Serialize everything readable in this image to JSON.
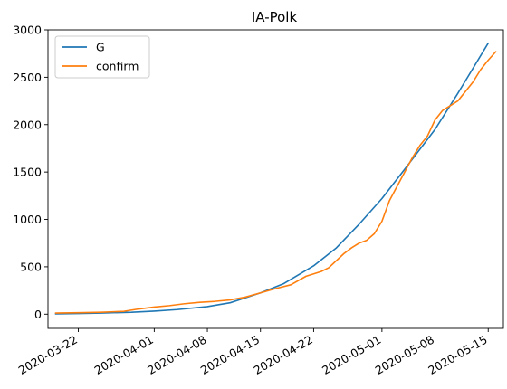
{
  "chart_data": {
    "type": "line",
    "title": "IA-Polk",
    "xlabel": "",
    "ylabel": "",
    "x_axis_type": "date",
    "xlim": [
      "2020-03-18",
      "2020-05-17"
    ],
    "ylim": [
      -150,
      3000
    ],
    "y_ticks": [
      0,
      500,
      1000,
      1500,
      2000,
      2500,
      3000
    ],
    "x_ticks": [
      "2020-03-22",
      "2020-04-01",
      "2020-04-08",
      "2020-04-15",
      "2020-04-22",
      "2020-05-01",
      "2020-05-08",
      "2020-05-15"
    ],
    "grid": false,
    "legend_position": "upper-left",
    "series": [
      {
        "name": "G",
        "color": "#1f77b4",
        "points": [
          [
            "2020-03-19",
            3
          ],
          [
            "2020-03-22",
            7
          ],
          [
            "2020-03-25",
            12
          ],
          [
            "2020-03-29",
            20
          ],
          [
            "2020-04-01",
            32
          ],
          [
            "2020-04-04",
            48
          ],
          [
            "2020-04-08",
            80
          ],
          [
            "2020-04-11",
            120
          ],
          [
            "2020-04-15",
            225
          ],
          [
            "2020-04-18",
            320
          ],
          [
            "2020-04-22",
            510
          ],
          [
            "2020-04-25",
            700
          ],
          [
            "2020-04-28",
            950
          ],
          [
            "2020-05-01",
            1220
          ],
          [
            "2020-05-04",
            1530
          ],
          [
            "2020-05-08",
            1950
          ],
          [
            "2020-05-11",
            2330
          ],
          [
            "2020-05-15",
            2860
          ]
        ]
      },
      {
        "name": "confirm",
        "color": "#ff7f0e",
        "points": [
          [
            "2020-03-19",
            12
          ],
          [
            "2020-03-22",
            15
          ],
          [
            "2020-03-25",
            20
          ],
          [
            "2020-03-28",
            30
          ],
          [
            "2020-03-30",
            55
          ],
          [
            "2020-04-01",
            75
          ],
          [
            "2020-04-03",
            90
          ],
          [
            "2020-04-05",
            110
          ],
          [
            "2020-04-07",
            125
          ],
          [
            "2020-04-09",
            135
          ],
          [
            "2020-04-11",
            150
          ],
          [
            "2020-04-13",
            180
          ],
          [
            "2020-04-15",
            225
          ],
          [
            "2020-04-17",
            270
          ],
          [
            "2020-04-19",
            310
          ],
          [
            "2020-04-21",
            400
          ],
          [
            "2020-04-23",
            450
          ],
          [
            "2020-04-24",
            490
          ],
          [
            "2020-04-26",
            640
          ],
          [
            "2020-04-27",
            700
          ],
          [
            "2020-04-28",
            750
          ],
          [
            "2020-04-29",
            780
          ],
          [
            "2020-04-30",
            850
          ],
          [
            "2020-05-01",
            980
          ],
          [
            "2020-05-02",
            1200
          ],
          [
            "2020-05-03",
            1350
          ],
          [
            "2020-05-04",
            1500
          ],
          [
            "2020-05-05",
            1650
          ],
          [
            "2020-05-06",
            1780
          ],
          [
            "2020-05-07",
            1880
          ],
          [
            "2020-05-08",
            2050
          ],
          [
            "2020-05-09",
            2150
          ],
          [
            "2020-05-10",
            2200
          ],
          [
            "2020-05-11",
            2250
          ],
          [
            "2020-05-12",
            2350
          ],
          [
            "2020-05-13",
            2450
          ],
          [
            "2020-05-14",
            2580
          ],
          [
            "2020-05-15",
            2680
          ],
          [
            "2020-05-16",
            2770
          ]
        ]
      }
    ]
  }
}
